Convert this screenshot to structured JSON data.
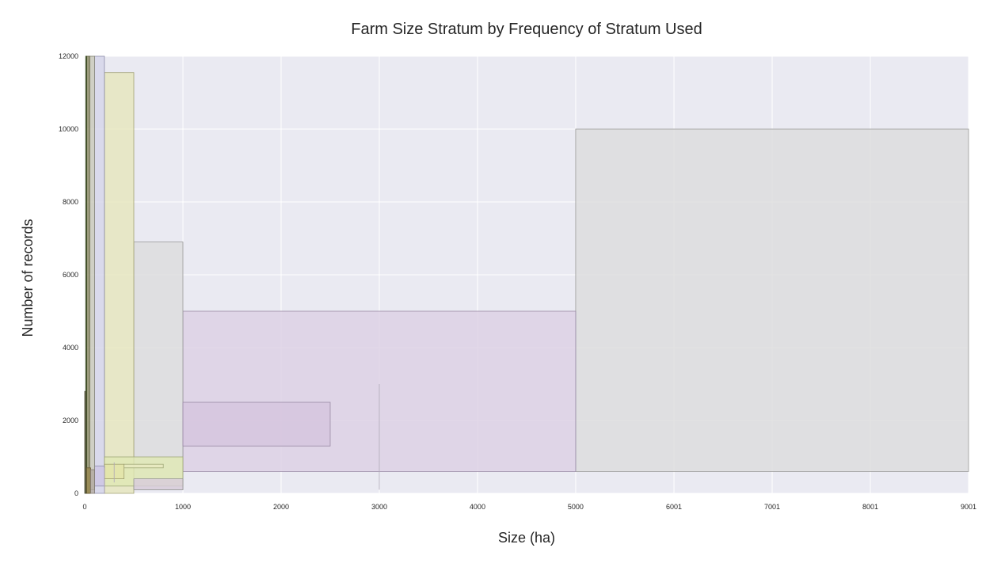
{
  "chart_data": {
    "type": "bar",
    "title": "Farm Size Stratum by Frequency of Stratum Used",
    "xlabel": "Size (ha)",
    "ylabel": "Number of records",
    "xlim": [
      0,
      9001
    ],
    "ylim": [
      0,
      12000
    ],
    "x_ticks": [
      {
        "value": 0,
        "label": "0"
      },
      {
        "value": 1000,
        "label": "1000"
      },
      {
        "value": 2000,
        "label": "2000"
      },
      {
        "value": 3000,
        "label": "3000"
      },
      {
        "value": 4000,
        "label": "4000"
      },
      {
        "value": 5000,
        "label": "5000"
      },
      {
        "value": 6001,
        "label": "6001"
      },
      {
        "value": 7001,
        "label": "7001"
      },
      {
        "value": 8001,
        "label": "8001"
      },
      {
        "value": 9001,
        "label": "9001"
      }
    ],
    "y_ticks": [
      {
        "value": 0,
        "label": "0"
      },
      {
        "value": 2000,
        "label": "2000"
      },
      {
        "value": 4000,
        "label": "4000"
      },
      {
        "value": 6000,
        "label": "6000"
      },
      {
        "value": 8000,
        "label": "8000"
      },
      {
        "value": 10000,
        "label": "10000"
      },
      {
        "value": 12000,
        "label": "12000"
      }
    ],
    "grid": true,
    "background": "#eaeaf2",
    "strata": [
      {
        "x0": 5000,
        "x1": 9001,
        "y0": 600,
        "y1": 10000,
        "fill": "#dcdcdc",
        "stroke": "#999999"
      },
      {
        "x0": 1000,
        "x1": 5000,
        "y0": 600,
        "y1": 5000,
        "fill": "#dccfe4",
        "stroke": "#9a8aa6"
      },
      {
        "x0": 500,
        "x1": 1000,
        "y0": 100,
        "y1": 6900,
        "fill": "#dcdcdc",
        "stroke": "#999999"
      },
      {
        "x0": 200,
        "x1": 500,
        "y0": 0,
        "y1": 11550,
        "fill": "#e6e6bc",
        "stroke": "#a6a67a"
      },
      {
        "x0": 100,
        "x1": 200,
        "y0": 0,
        "y1": 12000,
        "fill": "#d4d4e8",
        "stroke": "#8e8eaa"
      },
      {
        "x0": 1000,
        "x1": 2500,
        "y0": 1300,
        "y1": 2500,
        "fill": "#d4c4de",
        "stroke": "#9a8aa6"
      },
      {
        "x0": 200,
        "x1": 1000,
        "y0": 200,
        "y1": 1000,
        "fill": "#e0e8b4",
        "stroke": "#a0a878"
      },
      {
        "x0": 500,
        "x1": 1000,
        "y0": 100,
        "y1": 400,
        "fill": "#d8ccdc",
        "stroke": "#999999"
      },
      {
        "x0": 400,
        "x1": 800,
        "y0": 700,
        "y1": 800,
        "fill": "#e8eac0",
        "stroke": "#a0a878"
      },
      {
        "x0": 200,
        "x1": 400,
        "y0": 400,
        "y1": 800,
        "fill": "#e4e4a8",
        "stroke": "#a0a070"
      },
      {
        "x0": 100,
        "x1": 200,
        "y0": 200,
        "y1": 750,
        "fill": "#ccc4e4",
        "stroke": "#8e8eaa"
      },
      {
        "x0": 50,
        "x1": 100,
        "y0": 100,
        "y1": 12000,
        "fill": "#c8c8b8",
        "stroke": "#808070"
      },
      {
        "x0": 20,
        "x1": 50,
        "y0": 0,
        "y1": 12000,
        "fill": "#8a8a60",
        "stroke": "#606040"
      },
      {
        "x0": 10,
        "x1": 20,
        "y0": 0,
        "y1": 12000,
        "fill": "#4a5a30",
        "stroke": "#3a4a20"
      },
      {
        "x0": 0,
        "x1": 10,
        "y0": 0,
        "y1": 2800,
        "fill": "#6a6a50",
        "stroke": "#4a4a30"
      },
      {
        "x0": 20,
        "x1": 60,
        "y0": 0,
        "y1": 700,
        "fill": "#9a8a50",
        "stroke": "#6a5a30"
      },
      {
        "x0": 60,
        "x1": 100,
        "y0": 0,
        "y1": 650,
        "fill": "#b0a8a0",
        "stroke": "#807870"
      }
    ],
    "vlines": [
      {
        "x": 3000,
        "y0": 100,
        "y1": 3000
      },
      {
        "x": 300,
        "y0": 300,
        "y1": 850
      },
      {
        "x": 200,
        "y0": 0,
        "y1": 700
      }
    ]
  }
}
